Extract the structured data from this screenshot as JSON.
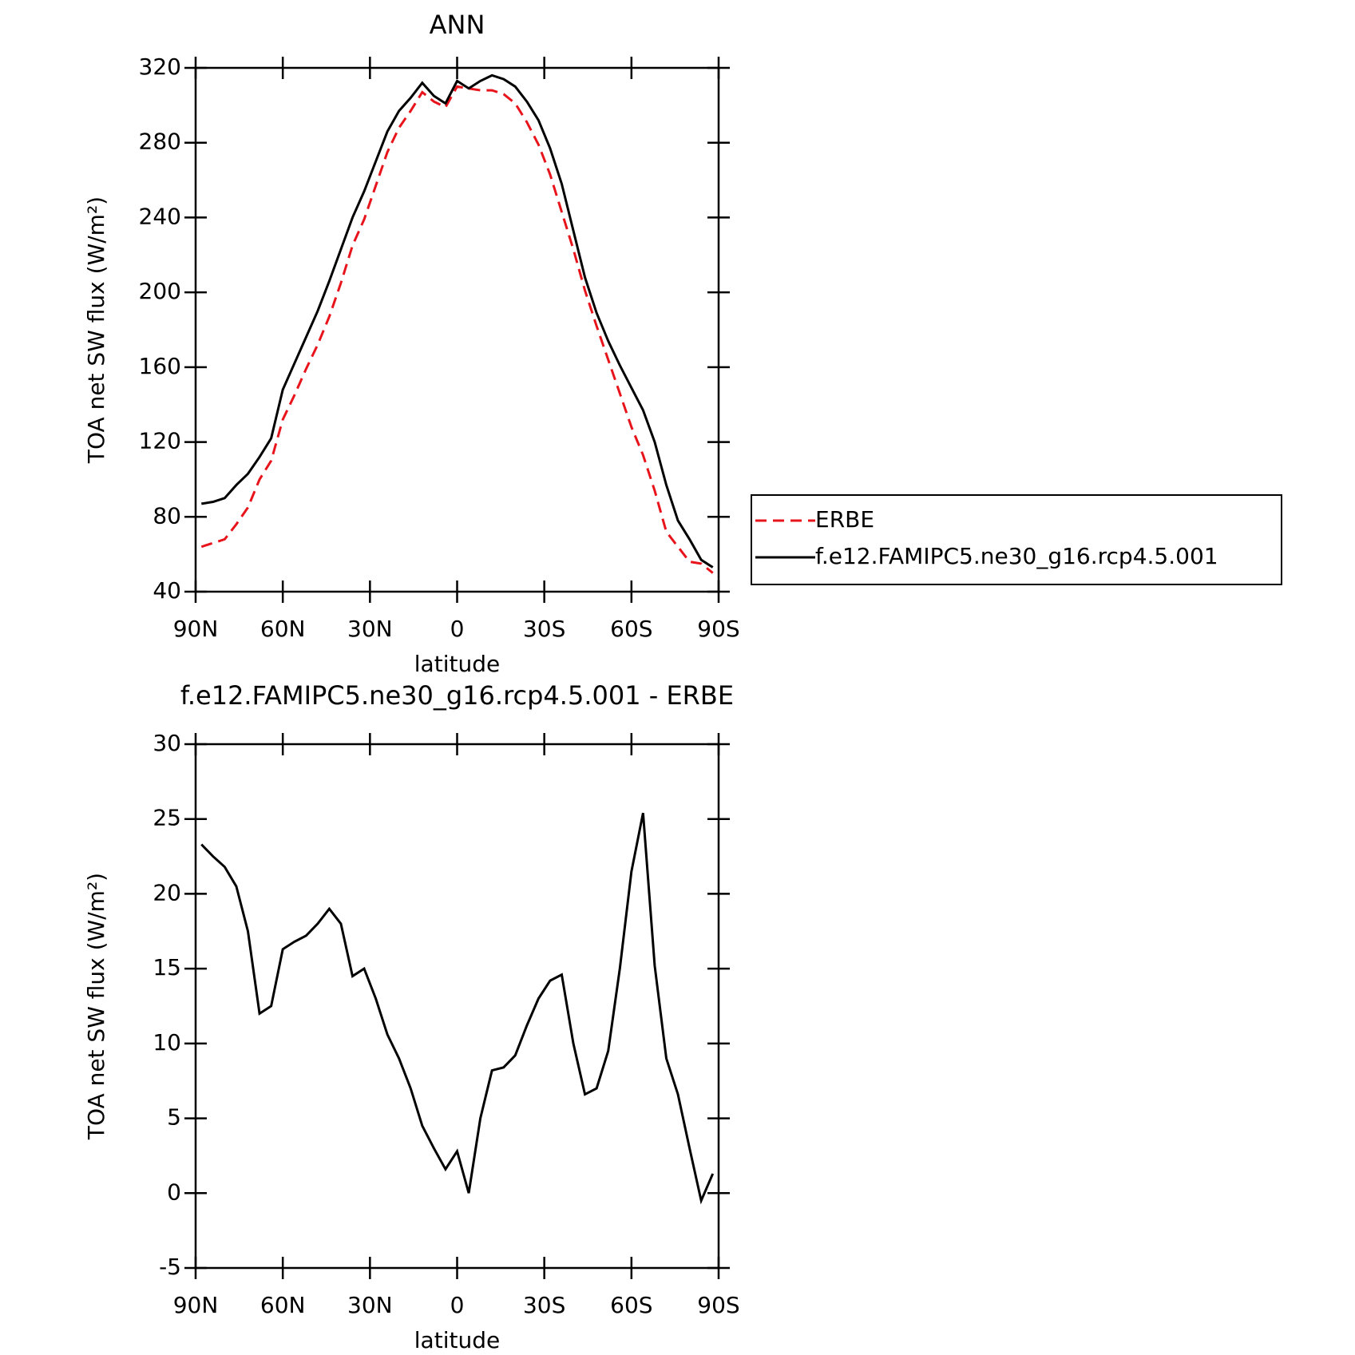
{
  "chart_data": [
    {
      "type": "line",
      "title": "ANN",
      "xlabel": "latitude",
      "ylabel": "TOA net SW flux (W/m²)",
      "x": [
        88,
        84,
        80,
        76,
        72,
        68,
        64,
        60,
        56,
        52,
        48,
        44,
        40,
        36,
        32,
        28,
        24,
        20,
        16,
        12,
        8,
        4,
        0,
        -4,
        -8,
        -12,
        -16,
        -20,
        -24,
        -28,
        -32,
        -36,
        -40,
        -44,
        -48,
        -52,
        -56,
        -60,
        -64,
        -68,
        -72,
        -76,
        -80,
        -84,
        -88
      ],
      "series": [
        {
          "name": "ERBE",
          "color": "#e8141c",
          "dash": true,
          "values": [
            64,
            66,
            68,
            76,
            85,
            100,
            110,
            132,
            145,
            159,
            172,
            187,
            205,
            225,
            239,
            257,
            275,
            288,
            297,
            307,
            302,
            299,
            310,
            309,
            308,
            308,
            306,
            301,
            291,
            279,
            263,
            243,
            223,
            201,
            182,
            164,
            146,
            128,
            113,
            94,
            72,
            64,
            56,
            55,
            50
          ]
        },
        {
          "name": "f.e12.FAMIPC5.ne30_g16.rcp4.5.001",
          "color": "#000000",
          "dash": false,
          "values": [
            87,
            88,
            90,
            97,
            103,
            112,
            122,
            148,
            162,
            176,
            190,
            206,
            223,
            240,
            254,
            270,
            286,
            297,
            304,
            312,
            305,
            301,
            313,
            309,
            313,
            316,
            314,
            310,
            302,
            292,
            277,
            258,
            233,
            208,
            189,
            174,
            161,
            149,
            137,
            120,
            97,
            78,
            68,
            57,
            53
          ]
        }
      ],
      "xlim": [
        90,
        -90
      ],
      "xticks": [
        {
          "value": 90,
          "label": "90N"
        },
        {
          "value": 60,
          "label": "60N"
        },
        {
          "value": 30,
          "label": "30N"
        },
        0,
        {
          "value": -30,
          "label": "30S"
        },
        {
          "value": -60,
          "label": "60S"
        },
        {
          "value": -90,
          "label": "90S"
        }
      ],
      "ylim": [
        40,
        320
      ],
      "yticks": [
        40,
        80,
        120,
        160,
        200,
        240,
        280,
        320
      ],
      "legend": "right"
    },
    {
      "type": "line",
      "title": "f.e12.FAMIPC5.ne30_g16.rcp4.5.001 - ERBE",
      "xlabel": "latitude",
      "ylabel": "TOA net SW flux (W/m²)",
      "x": [
        88,
        84,
        80,
        76,
        72,
        68,
        64,
        60,
        56,
        52,
        48,
        44,
        40,
        36,
        32,
        28,
        24,
        20,
        16,
        12,
        8,
        4,
        0,
        -4,
        -8,
        -12,
        -16,
        -20,
        -24,
        -28,
        -32,
        -36,
        -40,
        -44,
        -48,
        -52,
        -56,
        -60,
        -64,
        -68,
        -72,
        -76,
        -80,
        -84,
        -88
      ],
      "series": [
        {
          "color": "#000000",
          "values": [
            23.3,
            22.5,
            21.8,
            20.5,
            17.5,
            12,
            12.5,
            16.3,
            16.8,
            17.2,
            18.0,
            19.0,
            18.0,
            14.5,
            15.0,
            13.0,
            10.6,
            9.0,
            7.0,
            4.5,
            3.0,
            1.6,
            2.8,
            0.0,
            5.0,
            8.2,
            8.4,
            9.2,
            11.2,
            13.0,
            14.2,
            14.6,
            10.0,
            6.6,
            7.0,
            9.5,
            15.0,
            21.5,
            25.4,
            15.2,
            9.0,
            6.6,
            3.0,
            -0.5,
            1.3
          ]
        }
      ],
      "xlim": [
        90,
        -90
      ],
      "xticks": [
        {
          "value": 90,
          "label": "90N"
        },
        {
          "value": 60,
          "label": "60N"
        },
        {
          "value": 30,
          "label": "30N"
        },
        0,
        {
          "value": -30,
          "label": "30S"
        },
        {
          "value": -60,
          "label": "60S"
        },
        {
          "value": -90,
          "label": "90S"
        }
      ],
      "ylim": [
        -5,
        30
      ],
      "yticks": [
        -5,
        0,
        5,
        10,
        15,
        20,
        25,
        30
      ]
    }
  ]
}
